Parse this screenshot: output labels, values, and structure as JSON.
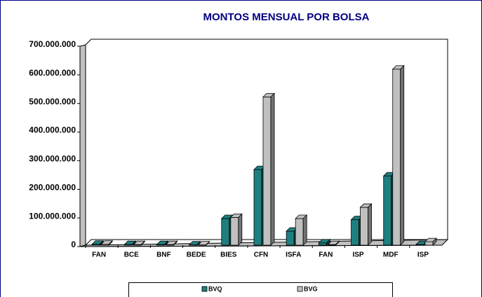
{
  "chart_data": {
    "type": "bar3d",
    "title": "MONTOS MENSUAL POR BOLSA",
    "categories": [
      "FAN",
      "BCE",
      "BNF",
      "BEDE",
      "BIES",
      "CFN",
      "ISFA",
      "FAN",
      "ISP",
      "MDF",
      "ISP"
    ],
    "series": [
      {
        "name": "BVQ",
        "color": "#1f7f7f",
        "values": [
          3000000,
          2000000,
          2000000,
          1000000,
          93000000,
          264000000,
          49000000,
          8000000,
          89000000,
          242000000,
          2000000
        ]
      },
      {
        "name": "BVG",
        "color": "#c0c0c0",
        "values": [
          3000000,
          2000000,
          2000000,
          1000000,
          97000000,
          518000000,
          93000000,
          2000000,
          132000000,
          615000000,
          12000000
        ]
      }
    ],
    "ylim": [
      0,
      700000000
    ],
    "yticks": [
      {
        "value": 0,
        "label": "0"
      },
      {
        "value": 100000000,
        "label": "100.000.000"
      },
      {
        "value": 200000000,
        "label": "200.000.000"
      },
      {
        "value": 300000000,
        "label": "300.000.000"
      },
      {
        "value": 400000000,
        "label": "400.000.000"
      },
      {
        "value": 500000000,
        "label": "500.000.000"
      },
      {
        "value": 600000000,
        "label": "600.000.000"
      },
      {
        "value": 700000000,
        "label": "700.000.000"
      }
    ],
    "grid": false,
    "legend": "bottom"
  }
}
